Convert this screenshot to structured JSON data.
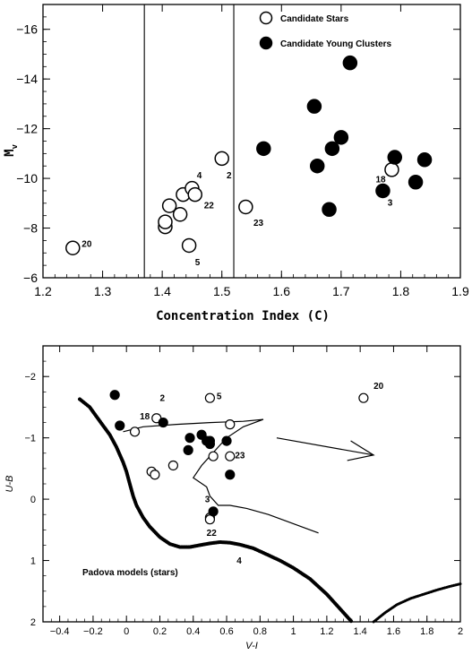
{
  "chart_data": [
    {
      "type": "scatter",
      "xlabel": "Concentration Index (C)",
      "ylabel": "M_v",
      "xlim": [
        1.2,
        1.9
      ],
      "ylim": [
        -6,
        -17
      ],
      "x_ticks": [
        "1.2",
        "1.3",
        "1.4",
        "1.5",
        "1.6",
        "1.7",
        "1.8",
        "1.9"
      ],
      "y_ticks": [
        "-6",
        "-8",
        "-10",
        "-12",
        "-14",
        "-16"
      ],
      "vertical_lines": [
        1.37,
        1.52
      ],
      "legend": {
        "placement": "top-right",
        "entries": [
          "Candidate Stars",
          "Candidate Young Clusters"
        ]
      },
      "series": [
        {
          "name": "Candidate Stars",
          "marker": "open-circle",
          "points": [
            [
              1.25,
              -7.2
            ],
            [
              1.405,
              -8.05
            ],
            [
              1.405,
              -8.25
            ],
            [
              1.412,
              -8.9
            ],
            [
              1.43,
              -8.55
            ],
            [
              1.435,
              -9.35
            ],
            [
              1.445,
              -7.3
            ],
            [
              1.45,
              -9.6
            ],
            [
              1.455,
              -9.35
            ],
            [
              1.5,
              -10.8
            ],
            [
              1.54,
              -8.85
            ],
            [
              1.785,
              -10.35
            ]
          ]
        },
        {
          "name": "Candidate Young Clusters",
          "marker": "filled-circle",
          "points": [
            [
              1.57,
              -11.2
            ],
            [
              1.655,
              -12.9
            ],
            [
              1.66,
              -10.5
            ],
            [
              1.68,
              -8.75
            ],
            [
              1.685,
              -11.2
            ],
            [
              1.7,
              -11.65
            ],
            [
              1.715,
              -14.65
            ],
            [
              1.77,
              -9.5
            ],
            [
              1.79,
              -10.85
            ],
            [
              1.825,
              -9.85
            ],
            [
              1.84,
              -10.75
            ]
          ]
        }
      ],
      "annotations": [
        {
          "text": "20",
          "x": 1.265,
          "y": -7.25
        },
        {
          "text": "4",
          "x": 1.458,
          "y": -10.0
        },
        {
          "text": "22",
          "x": 1.47,
          "y": -8.8
        },
        {
          "text": "2",
          "x": 1.508,
          "y": -10.0
        },
        {
          "text": "5",
          "x": 1.455,
          "y": -6.5
        },
        {
          "text": "23",
          "x": 1.553,
          "y": -8.1
        },
        {
          "text": "18",
          "x": 1.758,
          "y": -9.85
        },
        {
          "text": "3",
          "x": 1.778,
          "y": -8.9
        }
      ]
    },
    {
      "type": "scatter",
      "xlabel": "V-I",
      "ylabel": "U-B",
      "xlim": [
        -0.5,
        2.0
      ],
      "ylim": [
        2.0,
        -2.5
      ],
      "x_ticks": [
        "-0.4",
        "-0.2",
        "0",
        "0.2",
        "0.4",
        "0.6",
        "0.8",
        "1",
        "1.2",
        "1.4",
        "1.6",
        "1.8",
        "2"
      ],
      "y_ticks": [
        "2",
        "1",
        "0",
        "-1",
        "-2"
      ],
      "model_label": "Padova models (stars)",
      "series": [
        {
          "name": "open",
          "marker": "open-circle",
          "points": [
            [
              0.05,
              -1.1
            ],
            [
              0.15,
              -0.45
            ],
            [
              0.17,
              -0.4
            ],
            [
              0.18,
              -1.32
            ],
            [
              0.28,
              -0.55
            ],
            [
              0.5,
              -1.65
            ],
            [
              0.5,
              0.3
            ],
            [
              0.5,
              0.33
            ],
            [
              0.52,
              -0.7
            ],
            [
              0.62,
              -0.7
            ],
            [
              0.62,
              -1.22
            ],
            [
              1.42,
              -1.65
            ]
          ]
        },
        {
          "name": "filled",
          "marker": "filled-circle",
          "points": [
            [
              -0.07,
              -1.7
            ],
            [
              -0.04,
              -1.2
            ],
            [
              0.22,
              -1.25
            ],
            [
              0.37,
              -0.8
            ],
            [
              0.38,
              -1.0
            ],
            [
              0.45,
              -1.05
            ],
            [
              0.48,
              -0.95
            ],
            [
              0.5,
              -0.95
            ],
            [
              0.5,
              -0.9
            ],
            [
              0.52,
              0.2
            ],
            [
              0.6,
              -0.95
            ],
            [
              0.62,
              -0.4
            ]
          ]
        }
      ],
      "annotations": [
        {
          "text": "2",
          "x": 0.2,
          "y": -1.6
        },
        {
          "text": "5",
          "x": 0.54,
          "y": -1.63
        },
        {
          "text": "18",
          "x": 0.08,
          "y": -1.3
        },
        {
          "text": "20",
          "x": 1.48,
          "y": -1.8
        },
        {
          "text": "23",
          "x": 0.65,
          "y": -0.67
        },
        {
          "text": "3",
          "x": 0.47,
          "y": 0.05
        },
        {
          "text": "22",
          "x": 0.48,
          "y": 0.6
        },
        {
          "text": "4",
          "x": 0.66,
          "y": 1.05
        }
      ],
      "model_track_upper": [
        [
          -0.28,
          -1.63
        ],
        [
          -0.22,
          -1.5
        ],
        [
          -0.18,
          -1.35
        ],
        [
          -0.14,
          -1.2
        ],
        [
          -0.1,
          -1.05
        ],
        [
          -0.06,
          -0.85
        ],
        [
          -0.02,
          -0.6
        ],
        [
          0.0,
          -0.45
        ],
        [
          0.02,
          -0.25
        ],
        [
          0.04,
          -0.05
        ],
        [
          0.06,
          0.1
        ],
        [
          0.1,
          0.3
        ],
        [
          0.14,
          0.45
        ],
        [
          0.2,
          0.62
        ],
        [
          0.26,
          0.73
        ],
        [
          0.32,
          0.78
        ],
        [
          0.38,
          0.78
        ],
        [
          0.44,
          0.75
        ],
        [
          0.5,
          0.72
        ],
        [
          0.56,
          0.7
        ],
        [
          0.62,
          0.71
        ],
        [
          0.68,
          0.74
        ],
        [
          0.76,
          0.8
        ],
        [
          0.84,
          0.9
        ],
        [
          0.92,
          1.0
        ],
        [
          1.0,
          1.12
        ],
        [
          1.1,
          1.3
        ],
        [
          1.2,
          1.55
        ],
        [
          1.3,
          1.85
        ],
        [
          1.35,
          2.0
        ]
      ],
      "model_track_lower": [
        [
          1.48,
          2.0
        ],
        [
          1.55,
          1.85
        ],
        [
          1.62,
          1.72
        ],
        [
          1.7,
          1.62
        ],
        [
          1.78,
          1.55
        ],
        [
          1.86,
          1.48
        ],
        [
          1.94,
          1.42
        ],
        [
          2.0,
          1.38
        ]
      ],
      "model_loop": [
        [
          -0.02,
          -1.1
        ],
        [
          0.1,
          -1.18
        ],
        [
          0.3,
          -1.22
        ],
        [
          0.5,
          -1.25
        ],
        [
          0.7,
          -1.27
        ],
        [
          0.82,
          -1.3
        ],
        [
          0.7,
          -1.18
        ],
        [
          0.6,
          -1.0
        ],
        [
          0.55,
          -0.85
        ],
        [
          0.45,
          -0.55
        ],
        [
          0.4,
          -0.35
        ],
        [
          0.48,
          -0.2
        ],
        [
          0.5,
          -0.05
        ],
        [
          0.55,
          0.1
        ],
        [
          0.62,
          0.1
        ],
        [
          0.72,
          0.15
        ],
        [
          0.85,
          0.25
        ],
        [
          0.95,
          0.35
        ],
        [
          1.05,
          0.45
        ],
        [
          1.15,
          0.55
        ]
      ],
      "arrow": {
        "from": [
          0.9,
          -1.0
        ],
        "to": [
          1.48,
          -0.72
        ]
      }
    }
  ]
}
